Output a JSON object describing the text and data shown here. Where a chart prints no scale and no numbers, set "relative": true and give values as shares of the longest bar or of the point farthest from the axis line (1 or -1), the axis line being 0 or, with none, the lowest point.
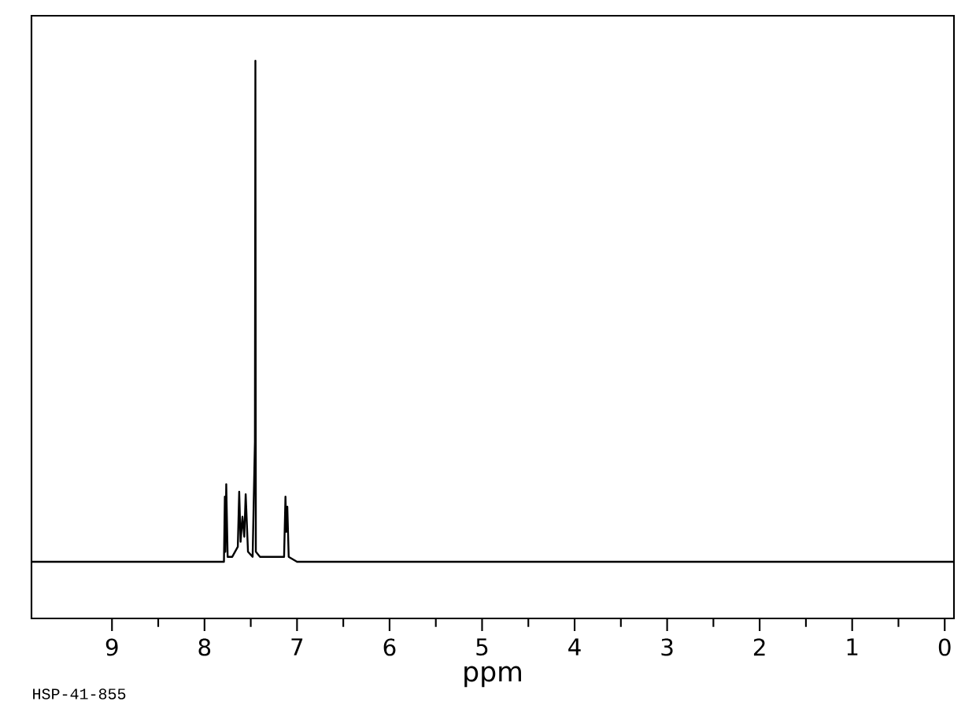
{
  "chart_data": {
    "type": "line",
    "relative": true,
    "xlabel": "ppm",
    "xlim": [
      9.87,
      -0.1
    ],
    "xticks": [
      9,
      8,
      7,
      6,
      5,
      4,
      3,
      2,
      1,
      0
    ],
    "annotations": [
      "HSP-41-855"
    ],
    "tick_labels": "x",
    "grid": false,
    "marker": "none",
    "line_style": "solid",
    "series": [
      {
        "color": "#000000",
        "x": [
          9.87,
          7.85,
          7.79,
          7.78,
          7.775,
          7.765,
          7.75,
          7.7,
          7.64,
          7.625,
          7.61,
          7.59,
          7.57,
          7.555,
          7.53,
          7.48,
          7.455,
          7.45,
          7.445,
          7.4,
          7.14,
          7.125,
          7.115,
          7.105,
          7.09,
          7.0,
          -0.1
        ],
        "values": [
          0,
          0,
          0,
          0.13,
          0.02,
          0.155,
          0.01,
          0.01,
          0.03,
          0.14,
          0.04,
          0.09,
          0.05,
          0.135,
          0.02,
          0.01,
          0.24,
          1.0,
          0.02,
          0.01,
          0.01,
          0.13,
          0.06,
          0.11,
          0.01,
          0,
          0
        ]
      }
    ]
  }
}
